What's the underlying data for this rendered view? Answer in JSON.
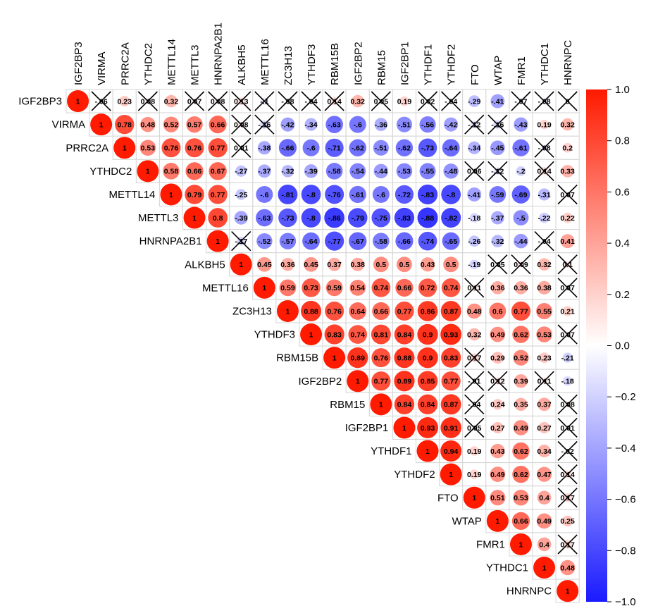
{
  "chart_data": {
    "type": "heatmap",
    "style": "upper-triangle circle correlation matrix; non-significant cells crossed out",
    "variables": [
      "IGF2BP3",
      "VIRMA",
      "PRRC2A",
      "YTHDC2",
      "METTL14",
      "METTL3",
      "HNRNPA2B1",
      "ALKBH5",
      "METTL16",
      "ZC3H13",
      "YTHDF3",
      "RBM15B",
      "IGF2BP2",
      "RBM15",
      "IGF2BP1",
      "YTHDF1",
      "YTHDF2",
      "FTO",
      "WTAP",
      "FMR1",
      "YTHDC1",
      "HNRNPC"
    ],
    "matrix": [
      [
        1,
        -0.06,
        0.23,
        0.08,
        0.32,
        0.07,
        0.08,
        0.13,
        -0.1,
        -0.08,
        -0.04,
        0.14,
        0.32,
        0.05,
        0.19,
        0.02,
        -0.04,
        -0.29,
        -0.41,
        -0.07,
        -0.08,
        0
      ],
      [
        null,
        1,
        0.78,
        0.48,
        0.52,
        0.57,
        0.66,
        0.08,
        -0.16,
        -0.42,
        -0.34,
        -0.63,
        -0.6,
        -0.36,
        -0.51,
        -0.56,
        -0.42,
        -0.12,
        -0.16,
        -0.43,
        0.19,
        0.32
      ],
      [
        null,
        null,
        1,
        0.53,
        0.76,
        0.76,
        0.77,
        0.01,
        -0.38,
        -0.66,
        -0.6,
        -0.71,
        -0.62,
        -0.51,
        -0.62,
        -0.73,
        -0.64,
        -0.34,
        -0.45,
        -0.61,
        -0.08,
        0.2
      ],
      [
        null,
        null,
        null,
        1,
        0.58,
        0.66,
        0.67,
        -0.27,
        -0.37,
        -0.32,
        -0.39,
        -0.58,
        -0.54,
        -0.44,
        -0.53,
        -0.55,
        -0.48,
        0.06,
        -0.12,
        -0.2,
        0.14,
        0.33
      ],
      [
        null,
        null,
        null,
        null,
        1,
        0.79,
        0.77,
        -0.25,
        -0.6,
        -0.81,
        -0.8,
        -0.76,
        -0.61,
        -0.6,
        -0.72,
        -0.83,
        -0.8,
        -0.41,
        -0.59,
        -0.69,
        -0.31,
        0.07
      ],
      [
        null,
        null,
        null,
        null,
        null,
        1,
        0.8,
        -0.39,
        -0.63,
        -0.73,
        -0.8,
        -0.86,
        -0.79,
        -0.75,
        -0.83,
        -0.88,
        -0.82,
        -0.18,
        -0.37,
        -0.5,
        -0.22,
        0.22
      ],
      [
        null,
        null,
        null,
        null,
        null,
        null,
        1,
        -0.17,
        -0.52,
        -0.57,
        -0.64,
        -0.77,
        -0.67,
        -0.58,
        -0.66,
        -0.74,
        -0.65,
        -0.26,
        -0.32,
        -0.44,
        -0.04,
        0.41
      ],
      [
        null,
        null,
        null,
        null,
        null,
        null,
        null,
        1,
        0.45,
        0.36,
        0.45,
        0.37,
        0.38,
        0.5,
        0.5,
        0.43,
        0.5,
        -0.19,
        0.05,
        0.09,
        0.32,
        0.1
      ],
      [
        null,
        null,
        null,
        null,
        null,
        null,
        null,
        null,
        1,
        0.59,
        0.73,
        0.59,
        0.54,
        0.74,
        0.66,
        0.72,
        0.74,
        0.11,
        0.36,
        0.36,
        0.38,
        0.07
      ],
      [
        null,
        null,
        null,
        null,
        null,
        null,
        null,
        null,
        null,
        1,
        0.88,
        0.76,
        0.64,
        0.66,
        0.77,
        0.86,
        0.87,
        0.48,
        0.6,
        0.77,
        0.55,
        0.21
      ],
      [
        null,
        null,
        null,
        null,
        null,
        null,
        null,
        null,
        null,
        null,
        1,
        0.83,
        0.74,
        0.81,
        0.84,
        0.9,
        0.93,
        0.32,
        0.49,
        0.62,
        0.53,
        0.07
      ],
      [
        null,
        null,
        null,
        null,
        null,
        null,
        null,
        null,
        null,
        null,
        null,
        1,
        0.89,
        0.76,
        0.88,
        0.9,
        0.83,
        0.17,
        0.29,
        0.52,
        0.23,
        -0.21
      ],
      [
        null,
        null,
        null,
        null,
        null,
        null,
        null,
        null,
        null,
        null,
        null,
        null,
        1,
        0.77,
        0.89,
        0.85,
        0.77,
        -0.01,
        0.12,
        0.39,
        0.11,
        -0.18
      ],
      [
        null,
        null,
        null,
        null,
        null,
        null,
        null,
        null,
        null,
        null,
        null,
        null,
        null,
        1,
        0.84,
        0.84,
        0.87,
        -0.04,
        0.24,
        0.35,
        0.37,
        0.08
      ],
      [
        null,
        null,
        null,
        null,
        null,
        null,
        null,
        null,
        null,
        null,
        null,
        null,
        null,
        null,
        1,
        0.93,
        0.91,
        0.05,
        0.27,
        0.49,
        0.27,
        0.01
      ],
      [
        null,
        null,
        null,
        null,
        null,
        null,
        null,
        null,
        null,
        null,
        null,
        null,
        null,
        null,
        null,
        1,
        0.94,
        0.19,
        0.43,
        0.62,
        0.34,
        -0.02
      ],
      [
        null,
        null,
        null,
        null,
        null,
        null,
        null,
        null,
        null,
        null,
        null,
        null,
        null,
        null,
        null,
        null,
        1,
        0.19,
        0.49,
        0.62,
        0.47,
        0.14
      ],
      [
        null,
        null,
        null,
        null,
        null,
        null,
        null,
        null,
        null,
        null,
        null,
        null,
        null,
        null,
        null,
        null,
        null,
        1,
        0.51,
        0.53,
        0.4,
        0.17
      ],
      [
        null,
        null,
        null,
        null,
        null,
        null,
        null,
        null,
        null,
        null,
        null,
        null,
        null,
        null,
        null,
        null,
        null,
        null,
        1,
        0.66,
        0.49,
        0.25
      ],
      [
        null,
        null,
        null,
        null,
        null,
        null,
        null,
        null,
        null,
        null,
        null,
        null,
        null,
        null,
        null,
        null,
        null,
        null,
        null,
        1,
        0.4,
        0.17
      ],
      [
        null,
        null,
        null,
        null,
        null,
        null,
        null,
        null,
        null,
        null,
        null,
        null,
        null,
        null,
        null,
        null,
        null,
        null,
        null,
        null,
        1,
        0.48
      ],
      [
        null,
        null,
        null,
        null,
        null,
        null,
        null,
        null,
        null,
        null,
        null,
        null,
        null,
        null,
        null,
        null,
        null,
        null,
        null,
        null,
        null,
        1
      ]
    ],
    "crossed": [
      [
        0,
        1
      ],
      [
        0,
        3
      ],
      [
        0,
        5
      ],
      [
        0,
        6
      ],
      [
        0,
        7
      ],
      [
        0,
        8
      ],
      [
        0,
        9
      ],
      [
        0,
        10
      ],
      [
        0,
        11
      ],
      [
        0,
        13
      ],
      [
        0,
        15
      ],
      [
        0,
        16
      ],
      [
        0,
        19
      ],
      [
        0,
        20
      ],
      [
        0,
        21
      ],
      [
        1,
        7
      ],
      [
        1,
        8
      ],
      [
        1,
        17
      ],
      [
        1,
        18
      ],
      [
        2,
        7
      ],
      [
        2,
        20
      ],
      [
        3,
        17
      ],
      [
        3,
        18
      ],
      [
        3,
        20
      ],
      [
        4,
        21
      ],
      [
        6,
        7
      ],
      [
        6,
        20
      ],
      [
        7,
        18
      ],
      [
        7,
        19
      ],
      [
        7,
        21
      ],
      [
        8,
        17
      ],
      [
        8,
        21
      ],
      [
        10,
        21
      ],
      [
        11,
        17
      ],
      [
        12,
        17
      ],
      [
        12,
        18
      ],
      [
        12,
        20
      ],
      [
        13,
        17
      ],
      [
        13,
        21
      ],
      [
        14,
        17
      ],
      [
        14,
        21
      ],
      [
        15,
        21
      ],
      [
        16,
        21
      ],
      [
        17,
        21
      ],
      [
        19,
        21
      ]
    ],
    "colorbar": {
      "min": -1.0,
      "max": 1.0,
      "ticks": [
        "1.0",
        "0.8",
        "0.6",
        "0.4",
        "0.2",
        "0.0",
        "−0.2",
        "−0.4",
        "−0.6",
        "−0.8",
        "−1.0"
      ],
      "colors": {
        "low": "#1a1aff",
        "mid": "#ffffff",
        "high": "#ff1a00"
      }
    }
  }
}
